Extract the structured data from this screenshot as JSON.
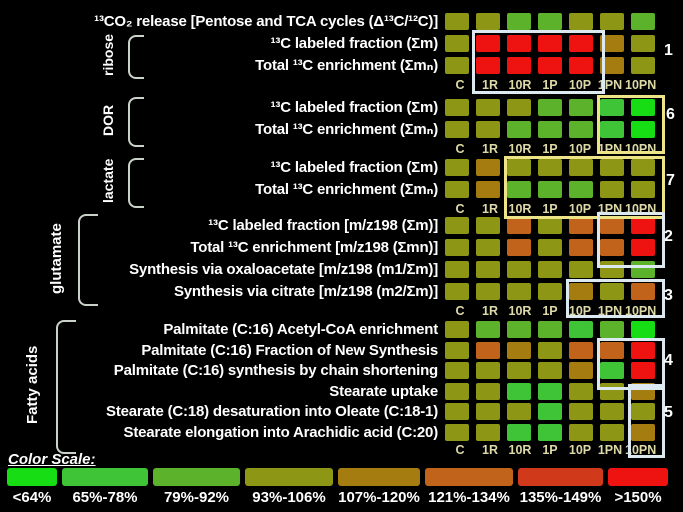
{
  "chart_data": {
    "type": "heatmap",
    "columns": [
      "C",
      "1R",
      "10R",
      "1P",
      "10P",
      "1PN",
      "10PN"
    ],
    "legend": {
      "title": "Color Scale:",
      "bins": [
        {
          "label": "<64%",
          "color": "#16dd14"
        },
        {
          "label": "65%-78%",
          "color": "#3fc337"
        },
        {
          "label": "79%-92%",
          "color": "#5cb22a"
        },
        {
          "label": "93%-106%",
          "color": "#8d9715"
        },
        {
          "label": "107%-120%",
          "color": "#a57c10"
        },
        {
          "label": "121%-134%",
          "color": "#c2631b"
        },
        {
          "label": "135%-149%",
          "color": "#d03a1a"
        },
        {
          "label": ">150%",
          "color": "#ee1310"
        }
      ]
    },
    "sections": [
      {
        "bracket": "",
        "col_labels": false,
        "rows": [
          {
            "label": "¹³CO₂ release [Pentose and TCA cycles (Δ¹³C/¹²C)]",
            "bins": [
              4,
              4,
              3,
              3,
              4,
              4,
              3
            ]
          }
        ]
      },
      {
        "bracket": "ribose",
        "col_labels": true,
        "rows": [
          {
            "label": "¹³C labeled fraction (Σm)",
            "bins": [
              4,
              8,
              8,
              8,
              8,
              5,
              4
            ]
          },
          {
            "label": "Total ¹³C enrichment (Σmₙ)",
            "bins": [
              4,
              8,
              8,
              8,
              8,
              5,
              4
            ]
          }
        ]
      },
      {
        "bracket": "DOR",
        "col_labels": true,
        "rows": [
          {
            "label": "¹³C labeled fraction (Σm)",
            "bins": [
              4,
              4,
              4,
              3,
              3,
              2,
              1
            ]
          },
          {
            "label": "Total ¹³C enrichment (Σmₙ)",
            "bins": [
              4,
              4,
              3,
              3,
              3,
              2,
              1
            ]
          }
        ]
      },
      {
        "bracket": "lactate",
        "col_labels": true,
        "rows": [
          {
            "label": "¹³C labeled fraction (Σm)",
            "bins": [
              4,
              5,
              4,
              4,
              4,
              4,
              4
            ]
          },
          {
            "label": "Total ¹³C enrichment (Σmₙ)",
            "bins": [
              4,
              5,
              3,
              3,
              3,
              4,
              4
            ]
          }
        ]
      },
      {
        "bracket": "glutamate",
        "col_labels": true,
        "rows": [
          {
            "label": "¹³C labeled fraction [m/z198 (Σm)]",
            "bins": [
              4,
              4,
              6,
              4,
              6,
              6,
              8
            ]
          },
          {
            "label": "Total ¹³C enrichment [m/z198 (Σmn)]",
            "bins": [
              4,
              4,
              6,
              4,
              6,
              6,
              8
            ]
          },
          {
            "label": "Synthesis via oxaloacetate [m/z198 (m1/Σm)]",
            "bins": [
              4,
              4,
              4,
              4,
              4,
              4,
              3
            ]
          },
          {
            "label": "Synthesis via citrate [m/z198 (m2/Σm)]",
            "bins": [
              4,
              4,
              4,
              4,
              5,
              4,
              6
            ]
          }
        ]
      },
      {
        "bracket": "Fatty acids",
        "col_labels": true,
        "rows": [
          {
            "label": "Palmitate (C:16) Acetyl-CoA enrichment",
            "bins": [
              4,
              3,
              3,
              3,
              2,
              3,
              1
            ]
          },
          {
            "label": "Palmitate (C:16) Fraction of New Synthesis",
            "bins": [
              4,
              6,
              5,
              4,
              6,
              6,
              8
            ]
          },
          {
            "label": "Palmitate (C:16) synthesis by chain shortening",
            "bins": [
              4,
              4,
              4,
              4,
              5,
              2,
              8
            ]
          },
          {
            "label": "Stearate uptake",
            "bins": [
              4,
              4,
              2,
              2,
              4,
              4,
              5
            ]
          },
          {
            "label": "Stearate (C:18) desaturation into Oleate (C:18-1)",
            "bins": [
              4,
              4,
              4,
              2,
              4,
              4,
              4
            ]
          },
          {
            "label": "Stearate elongation into Arachidic acid (C:20)",
            "bins": [
              4,
              4,
              2,
              2,
              4,
              4,
              5
            ]
          }
        ]
      }
    ],
    "highlight_boxes": [
      {
        "label": "1",
        "color": "#dde9f1"
      },
      {
        "label": "6",
        "color": "#ece487"
      },
      {
        "label": "7",
        "color": "#ece487"
      },
      {
        "label": "2",
        "color": "#dde9f1"
      },
      {
        "label": "3",
        "color": "#dde9f1"
      },
      {
        "label": "4",
        "color": "#dde9f1"
      },
      {
        "label": "5",
        "color": "#dde9f1"
      }
    ]
  }
}
